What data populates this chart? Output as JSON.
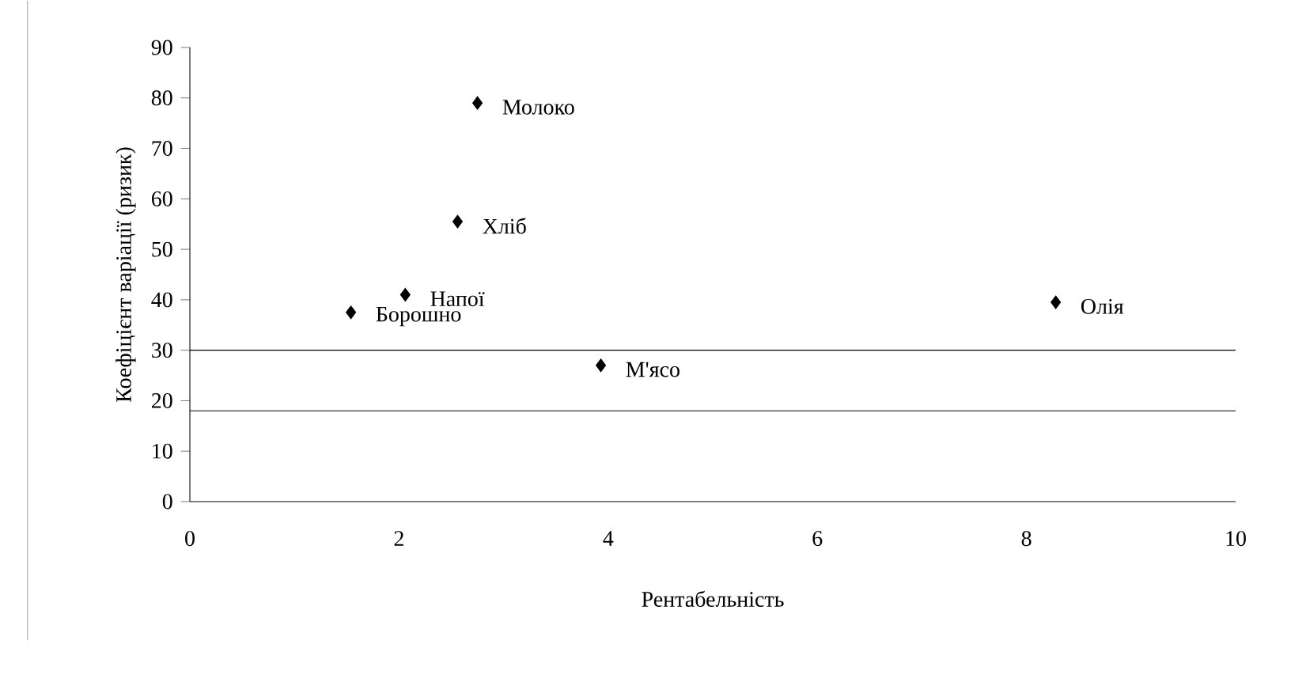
{
  "chart_data": {
    "type": "scatter",
    "xlabel": "Рентабельність",
    "ylabel": "Коефіцієнт варіації (ризик)",
    "x": [
      2.75,
      2.56,
      2.06,
      1.54,
      3.93,
      8.28
    ],
    "values": [
      79,
      55.5,
      41,
      37.5,
      27,
      39.5
    ],
    "color": "#000000",
    "marker": "diamond",
    "xlim": [
      0,
      10
    ],
    "ylim": [
      0,
      90
    ],
    "xticks": [
      0,
      2,
      4,
      6,
      8,
      10
    ],
    "yticks": [
      0,
      10,
      20,
      30,
      40,
      50,
      60,
      70,
      80,
      90
    ],
    "ref_lines": [
      {
        "axis": "y",
        "value": 30
      },
      {
        "axis": "y",
        "value": 18
      }
    ],
    "annotations": [
      {
        "text": "Молоко",
        "x": 2.75,
        "y": 79
      },
      {
        "text": "Хліб",
        "x": 2.56,
        "y": 55.5
      },
      {
        "text": "Напої",
        "x": 2.06,
        "y": 41
      },
      {
        "text": "Борошно",
        "x": 1.54,
        "y": 37.5
      },
      {
        "text": "М'ясо",
        "x": 3.93,
        "y": 27
      },
      {
        "text": "Олія",
        "x": 8.28,
        "y": 39.5
      }
    ]
  }
}
